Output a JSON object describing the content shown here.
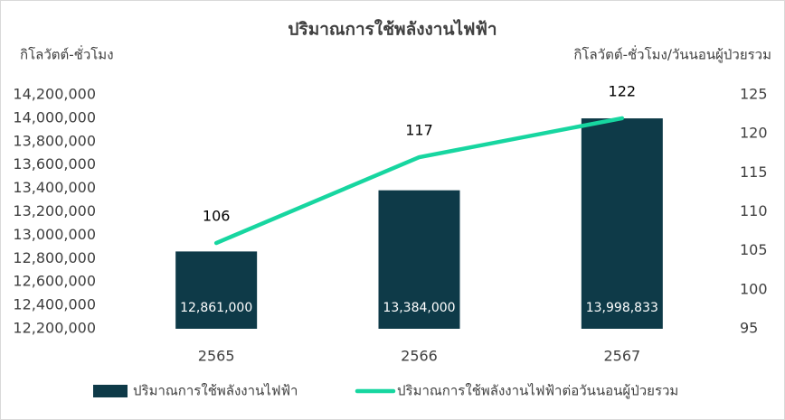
{
  "chart_data": {
    "type": "combo",
    "title": "ปริมาณการใช้พลังงานไฟฟ้า",
    "y_label": "กิโลวัตต์-ชั่วโมง",
    "y2_label": "กิโลวัตต์-ชั่วโมง/วันนอนผู้ป่วยรวม",
    "categories": [
      "2565",
      "2566",
      "2567"
    ],
    "series": [
      {
        "name": "ปริมาณการใช้พลังงานไฟฟ้า",
        "type": "bar",
        "color": "#0e3a48",
        "values": [
          12861000,
          13384000,
          13998833
        ],
        "value_labels": [
          "12,861,000",
          "13,384,000",
          "13,998,833"
        ]
      },
      {
        "name": "ปริมาณการใช้พลังงานไฟฟ้าต่อวันนอนผู้ป่วยรวม",
        "type": "line",
        "axis": "y2",
        "color": "#17d6a0",
        "values": [
          106,
          117,
          122
        ]
      }
    ],
    "ylim": [
      12200000,
      14200000
    ],
    "yticks": [
      {
        "value": 12200000,
        "label": "12,200,000"
      },
      {
        "value": 12400000,
        "label": "12,400,000"
      },
      {
        "value": 12600000,
        "label": "12,600,000"
      },
      {
        "value": 12800000,
        "label": "12,800,000"
      },
      {
        "value": 13000000,
        "label": "13,000,000"
      },
      {
        "value": 13200000,
        "label": "13,200,000"
      },
      {
        "value": 13400000,
        "label": "13,400,000"
      },
      {
        "value": 13600000,
        "label": "13,600,000"
      },
      {
        "value": 13800000,
        "label": "13,800,000"
      },
      {
        "value": 14000000,
        "label": "14,000,000"
      },
      {
        "value": 14200000,
        "label": "14,200,000"
      }
    ],
    "y2lim": [
      95,
      125
    ],
    "y2ticks": [
      95,
      100,
      105,
      110,
      115,
      120,
      125
    ],
    "legend": "bottom"
  }
}
